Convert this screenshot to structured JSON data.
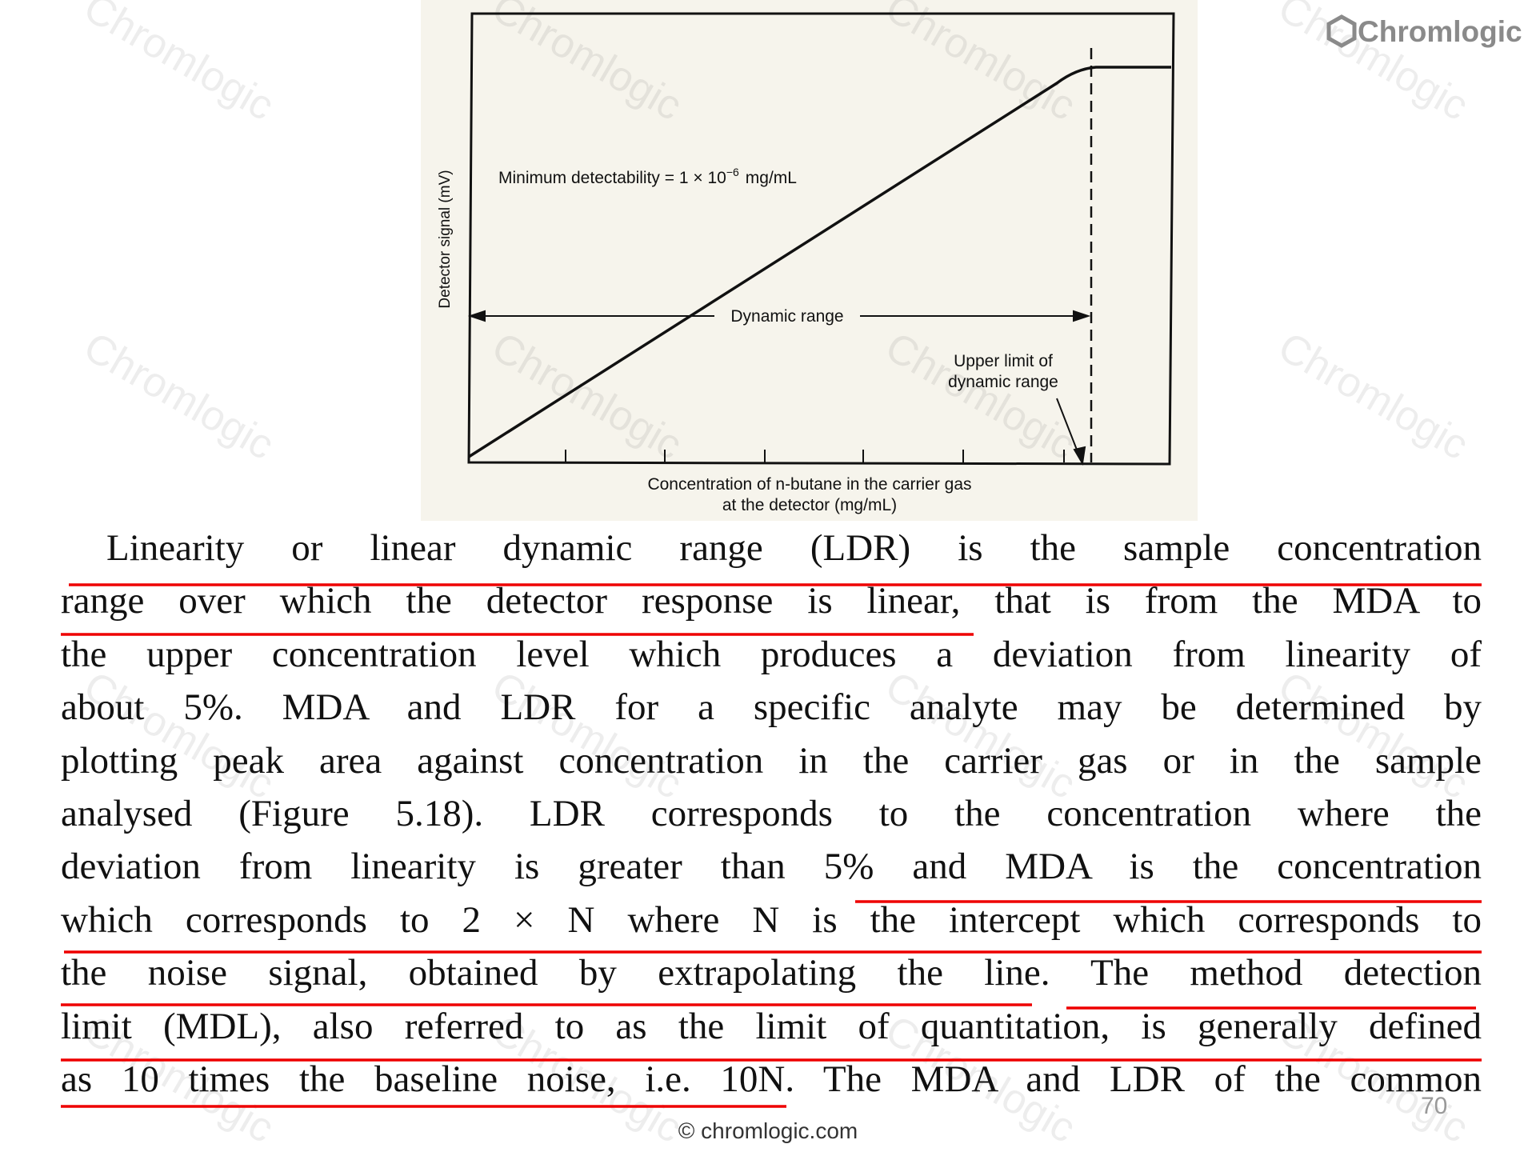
{
  "logo": "Chromlogic",
  "watermark": "Chromlogic",
  "figure": {
    "y_axis_label": "Detector signal (mV)",
    "x_axis_label_lines": [
      "Concentration of n-butane in the carrier gas",
      "at the detector (mg/mL)"
    ],
    "min_detectability": {
      "text": "Minimum detectability = 1 × 10",
      "exponent": "−6",
      "unit": "mg/mL"
    },
    "dynamic_range": "Dynamic range",
    "upper_limit_lines": [
      "Upper limit of",
      "dynamic range"
    ]
  },
  "paragraph_lines": [
    "Linearity or linear dynamic range (LDR) is the sample concentration",
    "range over which the detector response is linear, that is from the MDA to",
    "the upper concentration level which produces a deviation from linearity of",
    "about 5%. MDA and LDR for a specific analyte may be determined by",
    "plotting peak area against concentration in the carrier gas or in the sample",
    "analysed (Figure 5.18). LDR corresponds to the concentration where the",
    "deviation from linearity is greater than 5% and MDA is the concentration",
    "which corresponds to 2 × N where N is the intercept which corresponds to",
    "the noise signal, obtained by extrapolating the line. The method detection",
    "limit (MDL), also referred to as the limit of quantitation, is generally defined",
    "as 10 times the baseline noise, i.e. 10N. The MDA and LDR of the common"
  ],
  "page_number": "70",
  "footer": "© chromlogic.com"
}
